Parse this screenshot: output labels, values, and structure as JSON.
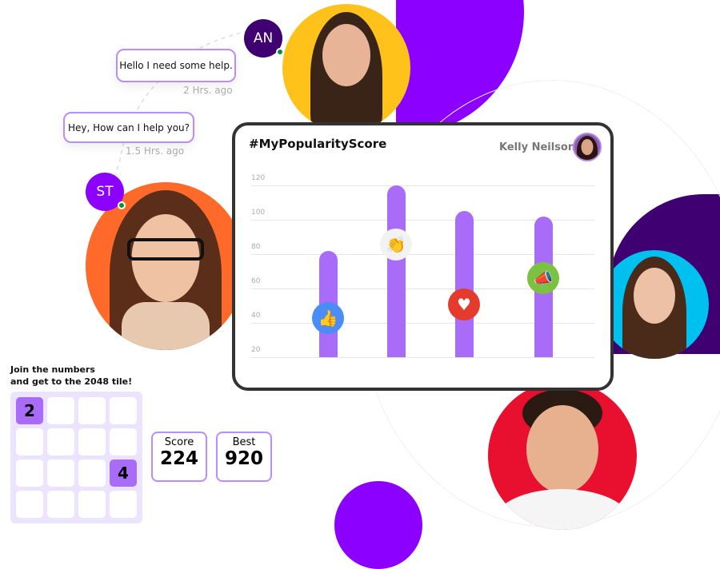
{
  "chat": {
    "messages": [
      {
        "text": "Hello I need some help.",
        "time": "2 Hrs. ago"
      },
      {
        "text": "Hey, How can I help you?",
        "time": "1.5 Hrs. ago"
      }
    ],
    "avatars": [
      {
        "initials": "AN",
        "color": "#3F0071"
      },
      {
        "initials": "ST",
        "color": "#8B00FF"
      }
    ]
  },
  "popularity": {
    "title": "#MyPopularityScore",
    "user": "Kelly Neilson"
  },
  "chart_data": {
    "type": "bar",
    "title": "#MyPopularityScore",
    "categories": [
      "like",
      "clap",
      "love",
      "announce"
    ],
    "icons": [
      "thumbs-up-icon",
      "clap-icon",
      "heart-icon",
      "megaphone-icon"
    ],
    "icon_colors": [
      "#4a8df8",
      "#f2f2f2",
      "#e53b2c",
      "#7cc242"
    ],
    "values": [
      82,
      120,
      105,
      102
    ],
    "ticks": [
      120,
      100,
      80,
      60,
      40,
      20
    ],
    "ylim": [
      20,
      120
    ],
    "grid": true,
    "bar_color": "#A96CF9"
  },
  "game": {
    "intro_line1": "Join the numbers",
    "intro_line2": "and get to the 2048 tile!",
    "tiles": [
      {
        "value": "2",
        "row": 0,
        "col": 0
      },
      {
        "value": "4",
        "row": 2,
        "col": 3
      }
    ],
    "score_label": "Score",
    "score": "224",
    "best_label": "Best",
    "best": "920"
  }
}
